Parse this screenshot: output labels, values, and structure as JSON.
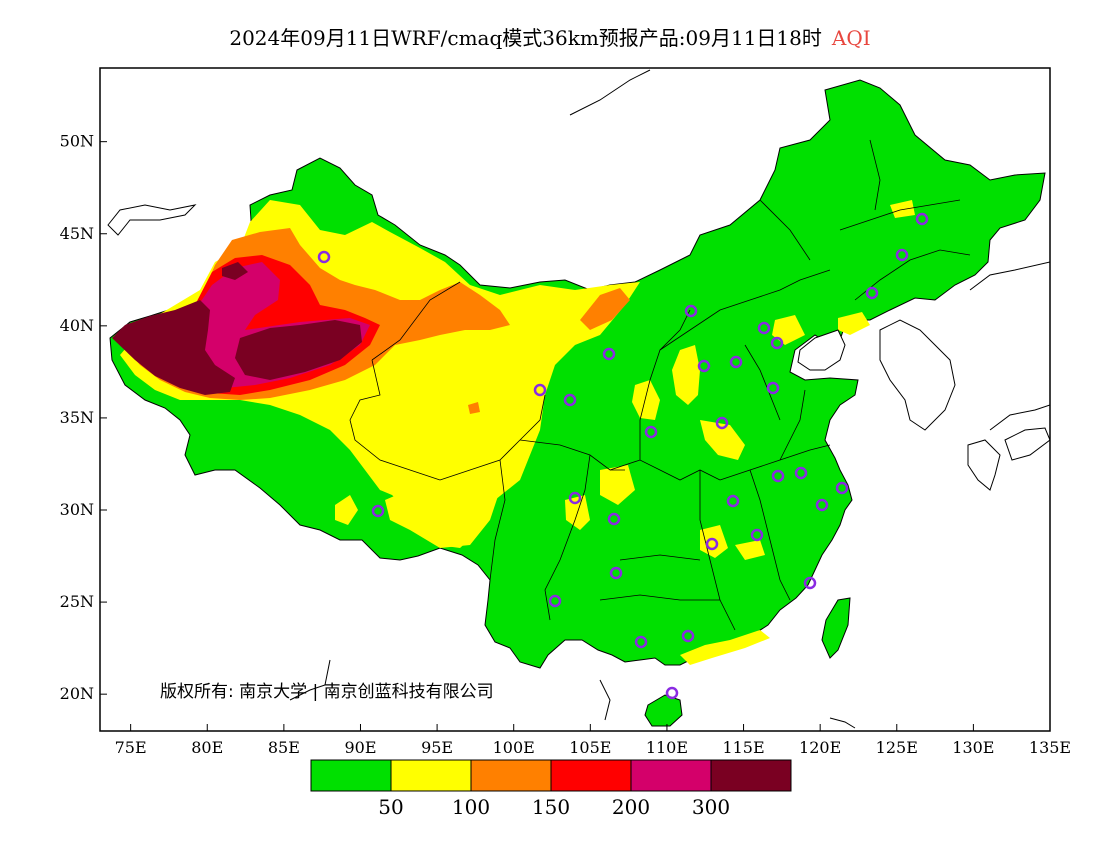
{
  "title": {
    "text": "2024年09月11日WRF/cmaq模式36km预报产品:09月11日18时",
    "variable": "AQI",
    "variable_color": "#e8473f"
  },
  "map": {
    "lon_range": [
      73,
      135
    ],
    "lat_range": [
      18,
      54
    ],
    "lat_ticks": [
      "20N",
      "25N",
      "30N",
      "35N",
      "40N",
      "45N",
      "50N"
    ],
    "lon_ticks": [
      "75E",
      "80E",
      "85E",
      "90E",
      "95E",
      "100E",
      "105E",
      "110E",
      "115E",
      "120E",
      "125E",
      "130E",
      "135E"
    ],
    "copyright": "版权所有: 南京大学 | 南京创蓝科技有限公司",
    "land_color": "#00e000",
    "station_marker_color": "#8a2be2"
  },
  "legend": {
    "colors": [
      "#00e000",
      "#ffff00",
      "#ff8000",
      "#ff0000",
      "#d4006a",
      "#7a0022"
    ],
    "labels": [
      "50",
      "100",
      "150",
      "200",
      "300"
    ]
  }
}
